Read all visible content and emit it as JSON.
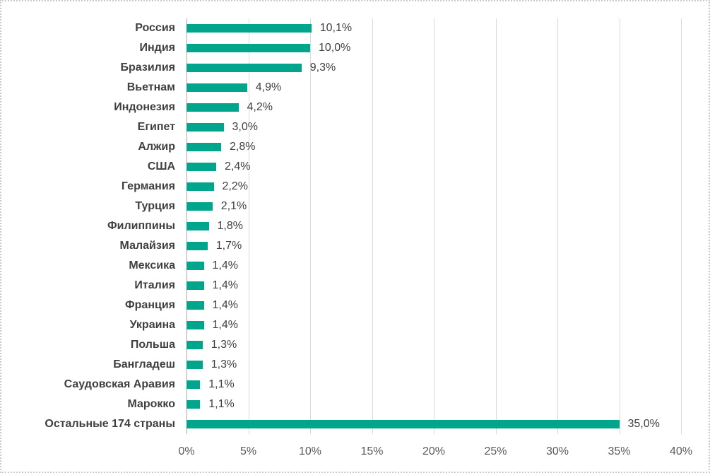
{
  "chart_data": {
    "type": "bar",
    "orientation": "horizontal",
    "title": "",
    "xlabel": "",
    "ylabel": "",
    "categories": [
      "Россия",
      "Индия",
      "Бразилия",
      "Вьетнам",
      "Индонезия",
      "Египет",
      "Алжир",
      "США",
      "Германия",
      "Турция",
      "Филиппины",
      "Малайзия",
      "Мексика",
      "Италия",
      "Франция",
      "Украина",
      "Польша",
      "Бангладеш",
      "Саудовская Аравия",
      "Марокко",
      "Остальные 174 страны"
    ],
    "values": [
      10.1,
      10.0,
      9.3,
      4.9,
      4.2,
      3.0,
      2.8,
      2.4,
      2.2,
      2.1,
      1.8,
      1.7,
      1.4,
      1.4,
      1.4,
      1.4,
      1.3,
      1.3,
      1.1,
      1.1,
      35.0
    ],
    "value_labels": [
      "10,1%",
      "10,0%",
      "9,3%",
      "4,9%",
      "4,2%",
      "3,0%",
      "2,8%",
      "2,4%",
      "2,2%",
      "2,1%",
      "1,8%",
      "1,7%",
      "1,4%",
      "1,4%",
      "1,4%",
      "1,4%",
      "1,3%",
      "1,3%",
      "1,1%",
      "1,1%",
      "35,0%"
    ],
    "x_axis": {
      "min": 0,
      "max": 40,
      "tick_step": 5,
      "tick_labels": [
        "0%",
        "5%",
        "10%",
        "15%",
        "20%",
        "25%",
        "30%",
        "35%",
        "40%"
      ]
    },
    "grid": true,
    "legend": false,
    "colors": {
      "bar": "#00A58C",
      "gridline": "#D9D9D9",
      "axis_line": "#A6A6A6",
      "category_label": "#404040",
      "value_label": "#404040",
      "tick_label": "#595959",
      "background": "#FFFFFF",
      "border": "#C9C9C9"
    }
  }
}
